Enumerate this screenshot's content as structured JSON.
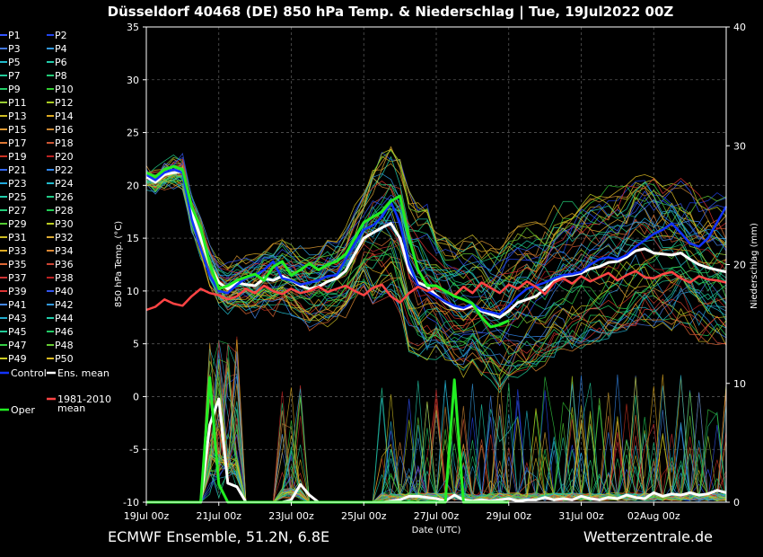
{
  "chart_data": {
    "type": "line",
    "title": "Düsseldorf 40468 (DE)  850 hPa Temp. & Niederschlag | Tue, 19Jul2022 00Z",
    "xlabel": "Date (UTC)",
    "ylabel": "850 hPa Temp. (°C)",
    "ylabel_right": "Niederschlag (mm)",
    "ylim": [
      -10,
      35
    ],
    "ylim_right": [
      0,
      40
    ],
    "xlim": [
      0,
      384
    ],
    "x_unit": "hours since 19Jul 00z",
    "x_ticks": [
      {
        "x": 0,
        "label": "19Jul 00z"
      },
      {
        "x": 48,
        "label": "21Jul 00z"
      },
      {
        "x": 96,
        "label": "23Jul 00z"
      },
      {
        "x": 144,
        "label": "25Jul 00z"
      },
      {
        "x": 192,
        "label": "27Jul 00z"
      },
      {
        "x": 240,
        "label": "29Jul 00z"
      },
      {
        "x": 288,
        "label": "31Jul 00z"
      },
      {
        "x": 336,
        "label": "02Aug 00z"
      }
    ],
    "y_ticks": [
      35,
      30,
      25,
      20,
      15,
      10,
      5,
      0,
      -5,
      -10
    ],
    "y_ticks_right": [
      40,
      30,
      20,
      10,
      0
    ],
    "grid": true,
    "legend_position": "left",
    "legend": [
      {
        "label": "P1",
        "color": "#3355ff"
      },
      {
        "label": "P2",
        "color": "#2244ee"
      },
      {
        "label": "P3",
        "color": "#4477dd"
      },
      {
        "label": "P4",
        "color": "#3399dd"
      },
      {
        "label": "P5",
        "color": "#22bbcc"
      },
      {
        "label": "P6",
        "color": "#22ccaa"
      },
      {
        "label": "P7",
        "color": "#22cc99"
      },
      {
        "label": "P8",
        "color": "#22cc77"
      },
      {
        "label": "P9",
        "color": "#22cc66"
      },
      {
        "label": "P10",
        "color": "#33cc33"
      },
      {
        "label": "P11",
        "color": "#99cc33"
      },
      {
        "label": "P12",
        "color": "#aacc22"
      },
      {
        "label": "P13",
        "color": "#ccbb22"
      },
      {
        "label": "P14",
        "color": "#ddaa22"
      },
      {
        "label": "P15",
        "color": "#dd9933"
      },
      {
        "label": "P16",
        "color": "#cc8833"
      },
      {
        "label": "P17",
        "color": "#dd7733"
      },
      {
        "label": "P18",
        "color": "#cc5533"
      },
      {
        "label": "P19",
        "color": "#cc3322"
      },
      {
        "label": "P20",
        "color": "#bb2222"
      },
      {
        "label": "P21",
        "color": "#3366ee"
      },
      {
        "label": "P22",
        "color": "#3388ee"
      },
      {
        "label": "P23",
        "color": "#22aadd"
      },
      {
        "label": "P24",
        "color": "#22bbcc"
      },
      {
        "label": "P25",
        "color": "#22ccaa"
      },
      {
        "label": "P26",
        "color": "#22cc88"
      },
      {
        "label": "P27",
        "color": "#22cc77"
      },
      {
        "label": "P28",
        "color": "#22cc55"
      },
      {
        "label": "P29",
        "color": "#55cc33"
      },
      {
        "label": "P30",
        "color": "#bbcc22"
      },
      {
        "label": "P31",
        "color": "#ccbb22"
      },
      {
        "label": "P32",
        "color": "#ddaa33"
      },
      {
        "label": "P33",
        "color": "#ddaa22"
      },
      {
        "label": "P34",
        "color": "#dd8833"
      },
      {
        "label": "P35",
        "color": "#dd6633"
      },
      {
        "label": "P36",
        "color": "#cc4433"
      },
      {
        "label": "P37",
        "color": "#cc3333"
      },
      {
        "label": "P38",
        "color": "#bb2222"
      },
      {
        "label": "P39",
        "color": "#dd3333"
      },
      {
        "label": "P40",
        "color": "#3355ee"
      },
      {
        "label": "P41",
        "color": "#4488ee"
      },
      {
        "label": "P42",
        "color": "#3399dd"
      },
      {
        "label": "P43",
        "color": "#22aacc"
      },
      {
        "label": "P44",
        "color": "#22ccaa"
      },
      {
        "label": "P45",
        "color": "#22cc99"
      },
      {
        "label": "P46",
        "color": "#22cc66"
      },
      {
        "label": "P47",
        "color": "#33cc44"
      },
      {
        "label": "P48",
        "color": "#66cc33"
      },
      {
        "label": "P49",
        "color": "#cccc22"
      },
      {
        "label": "P50",
        "color": "#ddbb22"
      }
    ],
    "legend_special": [
      {
        "label": "Control",
        "color": "#1133ff"
      },
      {
        "label": "Ens. mean",
        "color": "#ffffff"
      },
      {
        "label": "1981-2010",
        "label2": "mean",
        "color": "#ff4444"
      },
      {
        "label": "Oper",
        "color": "#22ee22"
      }
    ],
    "series": [
      {
        "name": "Ens. mean",
        "kind": "temp",
        "color": "#ffffff",
        "width": 3,
        "x": [
          0,
          6,
          12,
          18,
          24,
          30,
          36,
          42,
          48,
          54,
          60,
          66,
          72,
          78,
          84,
          90,
          96,
          102,
          108,
          114,
          120,
          126,
          132,
          138,
          144,
          150,
          156,
          162,
          168,
          174,
          180,
          186,
          192,
          198,
          204,
          210,
          216,
          222,
          228,
          234,
          240,
          246,
          252,
          258,
          264,
          270,
          276,
          282,
          288,
          294,
          300,
          306,
          312,
          318,
          324,
          330,
          336,
          342,
          348,
          354,
          360,
          366,
          372,
          378,
          384
        ],
        "y": [
          20.8,
          20.3,
          21.0,
          21.2,
          21.3,
          17.5,
          15.0,
          12.5,
          10.8,
          10.2,
          10.8,
          10.6,
          10.5,
          11.2,
          11.0,
          11.4,
          11.0,
          10.5,
          10.2,
          10.4,
          10.9,
          11.2,
          11.9,
          13.5,
          15.0,
          15.5,
          16.0,
          16.4,
          15.0,
          12.0,
          10.8,
          10.4,
          9.6,
          8.9,
          8.4,
          8.3,
          8.6,
          8.1,
          7.8,
          7.5,
          8.1,
          8.9,
          9.2,
          9.5,
          10.2,
          10.9,
          11.4,
          11.5,
          11.7,
          12.1,
          12.3,
          12.7,
          12.8,
          13.2,
          13.8,
          14.0,
          13.6,
          13.5,
          13.4,
          13.6,
          13.0,
          12.5,
          12.2,
          12.0,
          11.8
        ]
      },
      {
        "name": "Control",
        "kind": "temp",
        "color": "#1133ff",
        "width": 2.5,
        "x": [
          0,
          6,
          12,
          18,
          24,
          30,
          36,
          42,
          48,
          54,
          60,
          66,
          72,
          78,
          84,
          90,
          96,
          102,
          108,
          114,
          120,
          126,
          132,
          138,
          144,
          150,
          156,
          162,
          168,
          174,
          180,
          186,
          192,
          198,
          204,
          210,
          216,
          222,
          228,
          234,
          240,
          246,
          252,
          258,
          264,
          270,
          276,
          282,
          288,
          294,
          300,
          306,
          312,
          318,
          324,
          330,
          336,
          342,
          348,
          354,
          360,
          366,
          372,
          378,
          384
        ],
        "y": [
          21.0,
          20.5,
          21.2,
          21.5,
          21.2,
          16.8,
          14.0,
          11.5,
          10.0,
          9.8,
          10.6,
          11.2,
          11.5,
          12.0,
          12.8,
          11.2,
          11.0,
          10.6,
          10.8,
          11.0,
          11.4,
          11.5,
          13.0,
          14.5,
          15.8,
          16.2,
          17.0,
          18.4,
          16.5,
          12.5,
          10.5,
          10.0,
          9.5,
          9.0,
          8.6,
          8.4,
          8.8,
          8.2,
          8.0,
          7.8,
          8.6,
          9.5,
          10.2,
          10.5,
          10.8,
          11.2,
          11.5,
          11.6,
          11.8,
          12.5,
          13.0,
          13.2,
          13.0,
          13.4,
          14.2,
          14.8,
          15.4,
          15.8,
          16.4,
          15.5,
          14.5,
          14.2,
          15.0,
          16.5,
          18.0
        ]
      },
      {
        "name": "1981-2010 mean",
        "kind": "temp",
        "color": "#ff4444",
        "width": 2.5,
        "x": [
          0,
          6,
          12,
          18,
          24,
          30,
          36,
          42,
          48,
          54,
          60,
          66,
          72,
          78,
          84,
          90,
          96,
          102,
          108,
          114,
          120,
          126,
          132,
          138,
          144,
          150,
          156,
          162,
          168,
          174,
          180,
          186,
          192,
          198,
          204,
          210,
          216,
          222,
          228,
          234,
          240,
          246,
          252,
          258,
          264,
          270,
          276,
          282,
          288,
          294,
          300,
          306,
          312,
          318,
          324,
          330,
          336,
          342,
          348,
          354,
          360,
          366,
          372,
          378,
          384
        ],
        "y": [
          8.2,
          8.5,
          9.2,
          8.8,
          8.6,
          9.5,
          10.2,
          9.8,
          9.6,
          9.2,
          9.5,
          10.2,
          9.8,
          10.5,
          10.0,
          9.7,
          10.2,
          9.8,
          10.0,
          10.4,
          9.9,
          10.2,
          10.5,
          10.0,
          9.6,
          10.3,
          10.6,
          9.5,
          8.9,
          9.8,
          10.4,
          10.0,
          10.3,
          10.0,
          9.6,
          10.4,
          9.8,
          10.8,
          10.3,
          9.8,
          10.6,
          10.2,
          10.9,
          10.4,
          9.7,
          10.8,
          11.2,
          10.7,
          11.4,
          10.9,
          11.3,
          11.7,
          11.0,
          11.5,
          11.9,
          11.3,
          11.2,
          11.6,
          11.8,
          11.2,
          10.8,
          11.4,
          11.1,
          11.0,
          10.8
        ]
      },
      {
        "name": "Oper",
        "kind": "temp",
        "color": "#22ee22",
        "width": 3,
        "x": [
          0,
          6,
          12,
          18,
          24,
          30,
          36,
          42,
          48,
          54,
          60,
          66,
          72,
          78,
          84,
          90,
          96,
          102,
          108,
          114,
          120,
          126,
          132,
          138,
          144,
          150,
          156,
          162,
          168,
          174,
          180,
          186,
          192,
          198,
          204,
          210,
          216,
          222,
          228,
          234,
          240
        ],
        "y": [
          21.2,
          20.8,
          21.5,
          21.8,
          21.5,
          18.0,
          16.0,
          12.6,
          10.2,
          10.5,
          11.0,
          11.3,
          11.6,
          11.0,
          12.3,
          12.8,
          11.5,
          12.0,
          12.6,
          12.0,
          12.5,
          12.8,
          13.5,
          15.0,
          16.5,
          17.0,
          17.5,
          18.5,
          19.0,
          15.0,
          12.0,
          10.5,
          10.5,
          10.0,
          9.5,
          9.2,
          8.8,
          7.5,
          6.6,
          6.8,
          7.2
        ]
      },
      {
        "name": "Ens. mean precip",
        "kind": "precip",
        "color": "#ffffff",
        "width": 3,
        "x": [
          0,
          6,
          12,
          18,
          24,
          30,
          36,
          42,
          48,
          54,
          60,
          66,
          72,
          78,
          84,
          90,
          96,
          102,
          108,
          114,
          120,
          126,
          132,
          138,
          144,
          150,
          156,
          162,
          168,
          174,
          180,
          186,
          192,
          198,
          204,
          210,
          216,
          222,
          228,
          234,
          240,
          246,
          252,
          258,
          264,
          270,
          276,
          282,
          288,
          294,
          300,
          306,
          312,
          318,
          324,
          330,
          336,
          342,
          348,
          354,
          360,
          366,
          372,
          378,
          384
        ],
        "y": [
          0,
          0,
          0,
          0,
          0,
          0,
          0,
          6.5,
          8.7,
          1.6,
          1.3,
          0,
          0,
          0,
          0,
          0,
          0.2,
          1.5,
          0.6,
          0,
          0,
          0,
          0,
          0,
          0,
          0,
          0,
          0.1,
          0.2,
          0.5,
          0.5,
          0.4,
          0.3,
          0.1,
          0.6,
          0.2,
          0.1,
          0.2,
          0.1,
          0.2,
          0.3,
          0.1,
          0.2,
          0.2,
          0.4,
          0.2,
          0.3,
          0.2,
          0.5,
          0.3,
          0.2,
          0.4,
          0.3,
          0.6,
          0.4,
          0.3,
          0.8,
          0.5,
          0.7,
          0.6,
          0.8,
          0.6,
          0.7,
          1.0,
          0.8
        ]
      },
      {
        "name": "Oper precip",
        "kind": "precip",
        "color": "#22ee22",
        "width": 3,
        "x": [
          0,
          6,
          12,
          18,
          24,
          30,
          36,
          42,
          48,
          54,
          60,
          66,
          72,
          78,
          84,
          90,
          96,
          102,
          108,
          114,
          120,
          126,
          132,
          138,
          144,
          150,
          156,
          162,
          168,
          174,
          180,
          186,
          192,
          198,
          204,
          210,
          216,
          222,
          228,
          234,
          240
        ],
        "y": [
          0,
          0,
          0,
          0,
          0,
          0,
          0,
          10.5,
          1.5,
          0,
          0,
          0,
          0,
          0,
          0,
          0,
          0,
          0,
          0,
          0,
          0,
          0,
          0,
          0,
          0,
          0,
          0,
          0,
          0,
          0,
          0,
          0,
          0,
          0,
          10.3,
          0,
          0,
          0,
          0,
          0,
          0
        ]
      }
    ]
  },
  "footer": {
    "left": "ECMWF Ensemble, 51.2N, 6.8E",
    "right": "Wetterzentrale.de"
  }
}
